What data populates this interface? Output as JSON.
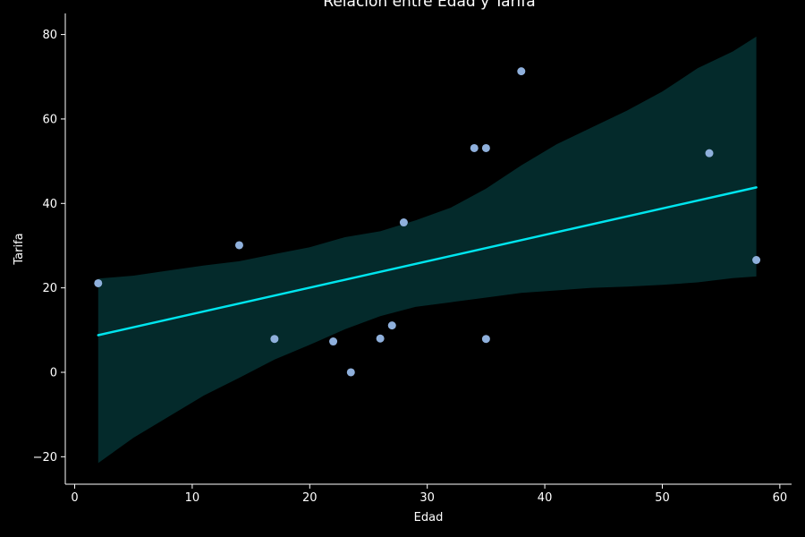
{
  "chart_data": {
    "type": "scatter",
    "title": "Relación entre Edad y Tarifa",
    "xlabel": "Edad",
    "ylabel": "Tarifa",
    "xlim": [
      -0.8,
      61
    ],
    "ylim": [
      -26.5,
      85
    ],
    "xticks": [
      0,
      10,
      20,
      30,
      40,
      50,
      60
    ],
    "yticks": [
      -20,
      0,
      20,
      40,
      60,
      80
    ],
    "grid": false,
    "points": [
      {
        "x": 2,
        "y": 21.1
      },
      {
        "x": 14,
        "y": 30.1
      },
      {
        "x": 17,
        "y": 7.9
      },
      {
        "x": 22,
        "y": 7.3
      },
      {
        "x": 23.5,
        "y": 0
      },
      {
        "x": 26,
        "y": 8.0
      },
      {
        "x": 27,
        "y": 11.1
      },
      {
        "x": 28,
        "y": 35.5
      },
      {
        "x": 34,
        "y": 53.1
      },
      {
        "x": 35,
        "y": 53.1
      },
      {
        "x": 35,
        "y": 7.9
      },
      {
        "x": 38,
        "y": 71.3
      },
      {
        "x": 54,
        "y": 51.9
      },
      {
        "x": 58,
        "y": 26.6
      }
    ],
    "regression": {
      "x": [
        2,
        58
      ],
      "y": [
        8.8,
        43.8
      ]
    },
    "confidence_band": {
      "x": [
        2,
        5,
        8,
        11,
        14,
        17,
        20,
        23,
        26,
        29,
        32,
        35,
        38,
        41,
        44,
        47,
        50,
        53,
        56,
        58
      ],
      "upper": [
        22.2,
        22.9,
        24.1,
        25.3,
        26.3,
        28.0,
        29.6,
        32.0,
        33.4,
        36.0,
        39.0,
        43.5,
        49.0,
        54.0,
        58.0,
        62.0,
        66.5,
        72.0,
        76.0,
        79.5
      ],
      "lower": [
        -21.5,
        -15.5,
        -10.5,
        -5.5,
        -1.3,
        3.0,
        6.5,
        10.2,
        13.3,
        15.5,
        16.6,
        17.7,
        18.8,
        19.4,
        20.0,
        20.3,
        20.7,
        21.3,
        22.3,
        22.7
      ]
    },
    "colors": {
      "background": "#000000",
      "points": "#8fb0dc",
      "line": "#00e5ee",
      "band": "#042a2b",
      "axes": "#ffffff"
    }
  }
}
